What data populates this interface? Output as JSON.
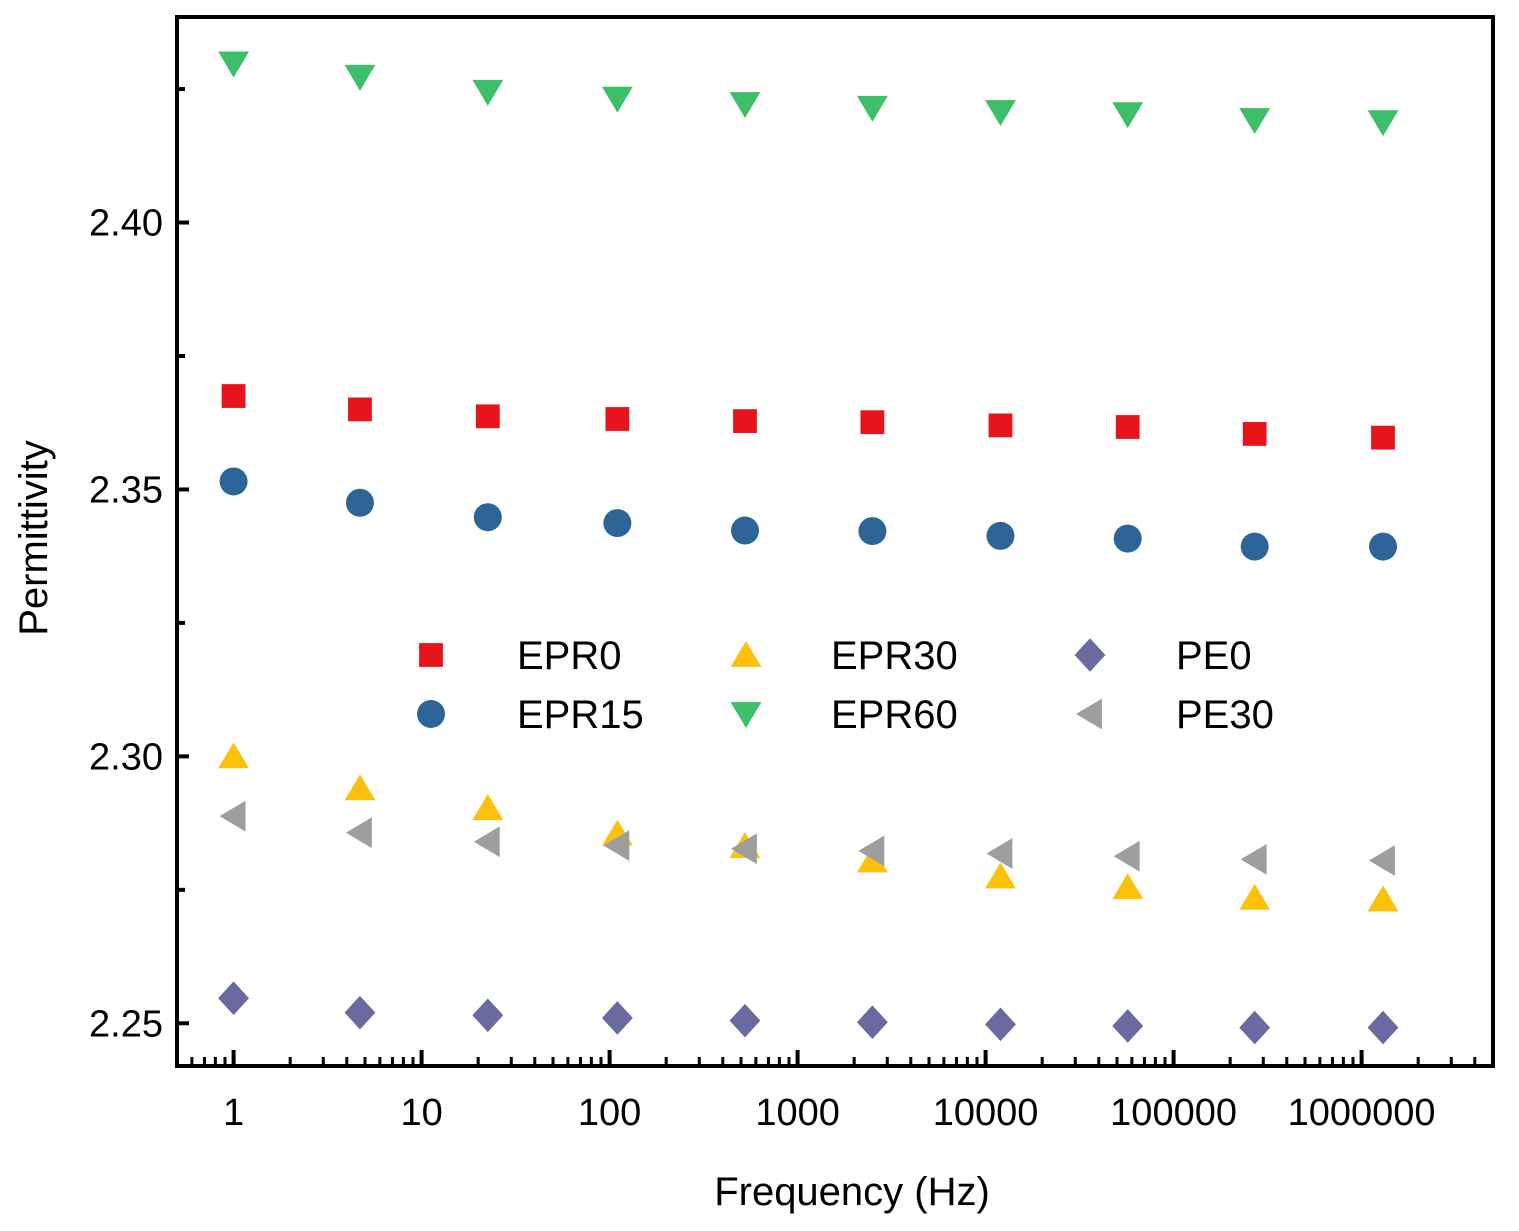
{
  "chart_data": {
    "type": "scatter",
    "title": "",
    "xlabel": "Frequency (Hz)",
    "ylabel": "Permittivity",
    "xscale": "log",
    "xlim": [
      0.5,
      5000000
    ],
    "ylim": [
      2.242,
      2.4385
    ],
    "xticks": [
      {
        "value": 1,
        "label": "1"
      },
      {
        "value": 10,
        "label": "10"
      },
      {
        "value": 100,
        "label": "100"
      },
      {
        "value": 1000,
        "label": "1000"
      },
      {
        "value": 10000,
        "label": "10000"
      },
      {
        "value": 100000,
        "label": "100000"
      },
      {
        "value": 1000000,
        "label": "1000000"
      }
    ],
    "yticks": [
      {
        "value": 2.25,
        "label": "2.25"
      },
      {
        "value": 2.3,
        "label": "2.30"
      },
      {
        "value": 2.35,
        "label": "2.35"
      },
      {
        "value": 2.4,
        "label": "2.40"
      }
    ],
    "yminor": [
      2.275,
      2.325,
      2.375,
      2.425
    ],
    "grid": false,
    "legend_position": "center",
    "x": [
      1,
      4.7,
      22.5,
      110,
      525,
      2500,
      12000,
      57000,
      270000,
      1300000
    ],
    "series": [
      {
        "name": "EPR0",
        "marker": "square",
        "color": "#e8141b",
        "values": [
          2.3675,
          2.365,
          2.3637,
          2.3632,
          2.3628,
          2.3626,
          2.362,
          2.3617,
          2.3604,
          2.3597
        ]
      },
      {
        "name": "EPR15",
        "marker": "circle",
        "color": "#2e6599",
        "values": [
          2.3515,
          2.3475,
          2.3448,
          2.3437,
          2.3423,
          2.3422,
          2.3413,
          2.3408,
          2.3393,
          2.3393
        ]
      },
      {
        "name": "EPR30",
        "marker": "triangle-up",
        "color": "#fec10b",
        "values": [
          2.3,
          2.294,
          2.2903,
          2.2855,
          2.2832,
          2.2805,
          2.2775,
          2.2755,
          2.2735,
          2.2732
        ]
      },
      {
        "name": "EPR60",
        "marker": "triangle-down",
        "color": "#3dbf6a",
        "values": [
          2.4298,
          2.4273,
          2.4245,
          2.4232,
          2.4222,
          2.4215,
          2.4207,
          2.4203,
          2.4192,
          2.4188
        ]
      },
      {
        "name": "PE0",
        "marker": "diamond",
        "color": "#6a6aa0",
        "values": [
          2.2547,
          2.252,
          2.2515,
          2.251,
          2.2505,
          2.2502,
          2.2498,
          2.2495,
          2.2492,
          2.2492
        ]
      },
      {
        "name": "PE30",
        "marker": "triangle-left",
        "color": "#9e9e9e",
        "values": [
          2.2888,
          2.2857,
          2.284,
          2.2833,
          2.2827,
          2.2823,
          2.2818,
          2.2813,
          2.2807,
          2.2805
        ]
      }
    ]
  }
}
